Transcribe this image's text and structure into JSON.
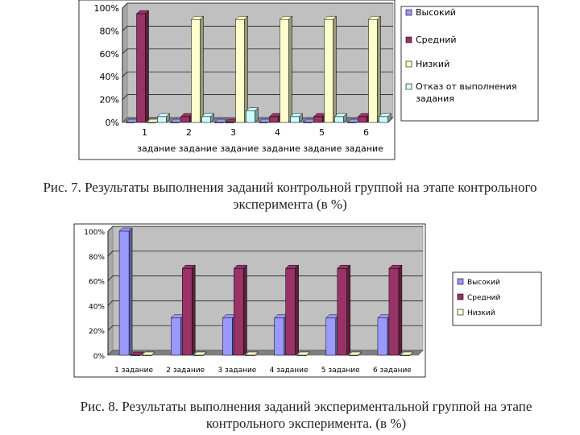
{
  "chart_data": [
    {
      "type": "bar",
      "categories": [
        "1",
        "2",
        "3",
        "4",
        "5",
        "6"
      ],
      "xlabel": "задание задание задание задание задание задание",
      "ylim": [
        0,
        100
      ],
      "yticks": [
        "0%",
        "20%",
        "40%",
        "60%",
        "80%",
        "100%"
      ],
      "grid": true,
      "legend_position": "right",
      "series": [
        {
          "name": "Высокий",
          "values": [
            0,
            0,
            0,
            0,
            0,
            0
          ],
          "color": "#9999ff"
        },
        {
          "name": "Средний",
          "values": [
            95,
            5,
            0,
            5,
            5,
            5
          ],
          "color": "#993366"
        },
        {
          "name": "Низкий",
          "values": [
            0,
            90,
            90,
            90,
            90,
            90
          ],
          "color": "#ffffcc"
        },
        {
          "name": "Отказ от выполнения задания",
          "values": [
            5,
            5,
            10,
            5,
            5,
            5
          ],
          "color": "#ccffff"
        }
      ]
    },
    {
      "type": "bar",
      "categories": [
        "1 задание",
        "2 задание",
        "3 задание",
        "4 задание",
        "5 задание",
        "6 задание"
      ],
      "xlabel": "",
      "ylim": [
        0,
        100
      ],
      "yticks": [
        "0%",
        "20%",
        "40%",
        "60%",
        "80%",
        "100%"
      ],
      "grid": true,
      "legend_position": "right",
      "series": [
        {
          "name": "Высокий",
          "values": [
            100,
            30,
            30,
            30,
            30,
            30
          ],
          "color": "#9999ff"
        },
        {
          "name": "Средний",
          "values": [
            0,
            70,
            70,
            70,
            70,
            70
          ],
          "color": "#993366"
        },
        {
          "name": "Низкий",
          "values": [
            0,
            0,
            0,
            0,
            0,
            0
          ],
          "color": "#ffffcc"
        }
      ]
    }
  ],
  "captions": {
    "fig7_line1": "Рис. 7. Результаты выполнения заданий контрольной группой на этапе контрольного",
    "fig7_line2": "эксперимента (в %)",
    "fig8_line1": "Рис. 8. Результаты выполнения заданий экспериментальной группой на этапе",
    "fig8_line2": "контрольного эксперимента. (в %)"
  }
}
